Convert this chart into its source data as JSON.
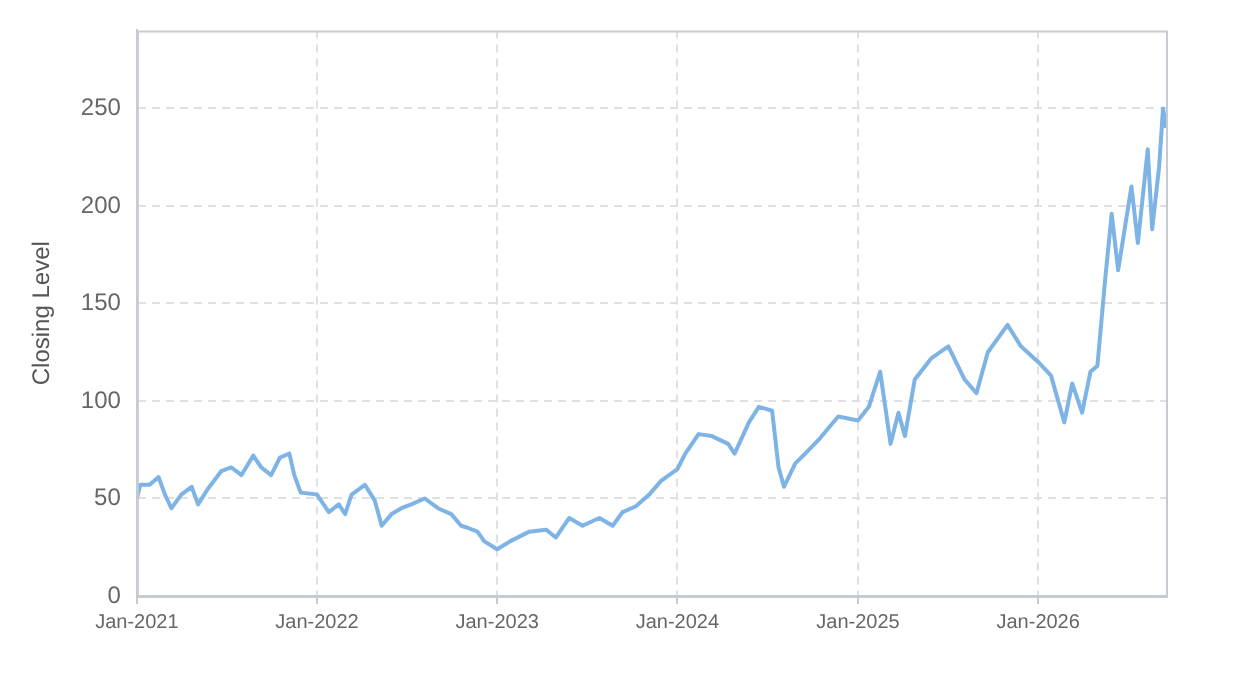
{
  "chart_data": {
    "type": "line",
    "ylabel": "Closing Level",
    "x": [
      "2021-01-01",
      "2021-01-08",
      "2021-01-27",
      "2021-02-14",
      "2021-02-27",
      "2021-03-12",
      "2021-04-01",
      "2021-04-22",
      "2021-05-05",
      "2021-05-25",
      "2021-06-21",
      "2021-07-11",
      "2021-08-01",
      "2021-08-25",
      "2021-09-10",
      "2021-09-30",
      "2021-10-18",
      "2021-11-06",
      "2021-11-16",
      "2021-11-29",
      "2022-01-01",
      "2022-01-25",
      "2022-02-14",
      "2022-02-27",
      "2022-03-12",
      "2022-04-08",
      "2022-04-28",
      "2022-05-12",
      "2022-06-01",
      "2022-06-21",
      "2022-07-11",
      "2022-08-07",
      "2022-09-03",
      "2022-09-30",
      "2022-10-20",
      "2022-11-02",
      "2022-11-22",
      "2022-12-06",
      "2023-01-01",
      "2023-01-27",
      "2023-03-07",
      "2023-04-10",
      "2023-04-30",
      "2023-05-27",
      "2023-06-23",
      "2023-07-27",
      "2023-08-23",
      "2023-09-12",
      "2023-10-09",
      "2023-11-05",
      "2023-11-29",
      "2023-12-15",
      "2024-01-01",
      "2024-01-17",
      "2024-02-13",
      "2024-03-11",
      "2024-04-13",
      "2024-04-26",
      "2024-05-25",
      "2024-06-14",
      "2024-07-11",
      "2024-07-24",
      "2024-08-04",
      "2024-08-27",
      "2024-09-16",
      "2024-10-13",
      "2024-11-22",
      "2025-01-01",
      "2025-01-23",
      "2025-02-15",
      "2025-03-08",
      "2025-03-24",
      "2025-04-06",
      "2025-04-26",
      "2025-05-30",
      "2025-07-03",
      "2025-08-05",
      "2025-08-29",
      "2025-09-21",
      "2025-10-31",
      "2025-11-27",
      "2026-01-01",
      "2026-01-27",
      "2026-02-23",
      "2026-03-11",
      "2026-03-31",
      "2026-04-17",
      "2026-05-01",
      "2026-05-17",
      "2026-05-30",
      "2026-06-12",
      "2026-07-09",
      "2026-07-22",
      "2026-08-11",
      "2026-08-20",
      "2026-09-03",
      "2026-09-11",
      "2026-09-17"
    ],
    "series": [
      {
        "color": "#7eb3e6",
        "values": [
          50,
          57,
          57,
          61,
          52,
          45,
          52,
          56,
          47,
          55,
          64,
          66,
          62,
          72,
          66,
          62,
          71,
          73,
          62,
          53,
          52,
          43,
          47,
          42,
          52,
          57,
          49,
          36,
          42,
          45,
          47,
          50,
          45,
          42,
          36,
          35,
          33,
          28,
          24,
          28,
          33,
          34,
          30,
          40,
          36,
          40,
          36,
          43,
          46,
          52,
          59,
          62,
          65,
          73,
          83,
          82,
          78,
          73,
          89,
          97,
          95,
          66,
          56,
          68,
          73,
          80,
          92,
          90,
          97,
          115,
          78,
          94,
          82,
          111,
          122,
          128,
          111,
          104,
          125,
          139,
          128,
          120,
          113,
          89,
          109,
          94,
          115,
          118,
          163,
          196,
          167,
          210,
          181,
          229,
          188,
          220,
          250,
          240
        ]
      }
    ],
    "xlim": [
      "2021-01-01",
      "2026-09-17"
    ],
    "xticks": [
      {
        "value": "2021-01-01",
        "label": "Jan-2021"
      },
      {
        "value": "2022-01-01",
        "label": "Jan-2022"
      },
      {
        "value": "2023-01-01",
        "label": "Jan-2023"
      },
      {
        "value": "2024-01-01",
        "label": "Jan-2024"
      },
      {
        "value": "2025-01-01",
        "label": "Jan-2025"
      },
      {
        "value": "2026-01-01",
        "label": "Jan-2026"
      }
    ],
    "ylim": [
      0,
      290
    ],
    "yticks": [
      0,
      50,
      100,
      150,
      200,
      250
    ],
    "grid": true,
    "marker": "none",
    "line_style": "solid"
  }
}
